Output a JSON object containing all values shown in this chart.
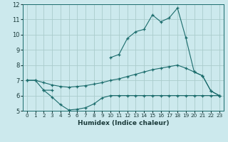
{
  "xlabel": "Humidex (Indice chaleur)",
  "bg_color": "#cce9ed",
  "grid_color": "#aacccc",
  "line_color": "#1a6b6b",
  "xlim": [
    -0.5,
    23.5
  ],
  "ylim": [
    5,
    12
  ],
  "yticks": [
    5,
    6,
    7,
    8,
    9,
    10,
    11,
    12
  ],
  "xticks": [
    0,
    1,
    2,
    3,
    4,
    5,
    6,
    7,
    8,
    9,
    10,
    11,
    12,
    13,
    14,
    15,
    16,
    17,
    18,
    19,
    20,
    21,
    22,
    23
  ],
  "curve1_x": [
    0,
    1,
    2,
    3,
    10,
    11,
    12,
    13,
    14,
    15,
    16,
    17,
    18,
    19,
    20,
    21,
    22,
    23
  ],
  "curve1_y": [
    7.0,
    7.0,
    6.35,
    6.35,
    8.5,
    8.7,
    9.75,
    10.2,
    10.35,
    11.3,
    10.85,
    11.1,
    11.75,
    9.8,
    7.55,
    7.3,
    6.3,
    6.0
  ],
  "curve2_x": [
    0,
    1,
    2,
    3,
    4,
    5,
    6,
    7,
    8,
    9,
    10,
    11,
    12,
    13,
    14,
    15,
    16,
    17,
    18,
    19,
    20,
    21,
    22,
    23
  ],
  "curve2_y": [
    7.0,
    7.0,
    6.85,
    6.7,
    6.6,
    6.55,
    6.6,
    6.65,
    6.75,
    6.85,
    7.0,
    7.1,
    7.25,
    7.4,
    7.55,
    7.7,
    7.8,
    7.9,
    8.0,
    7.8,
    7.55,
    7.3,
    6.3,
    6.0
  ],
  "curve3_x": [
    2,
    3,
    4,
    5,
    6,
    7,
    8,
    9,
    10,
    11,
    12,
    13,
    14,
    15,
    16,
    17,
    18,
    19,
    20,
    21,
    22,
    23
  ],
  "curve3_y": [
    6.35,
    5.9,
    5.4,
    5.05,
    5.1,
    5.2,
    5.45,
    5.85,
    6.0,
    6.0,
    6.0,
    6.0,
    6.0,
    6.0,
    6.0,
    6.0,
    6.0,
    6.0,
    6.0,
    6.0,
    6.0,
    6.0
  ],
  "xlabel_fontsize": 6.5,
  "tick_fontsize_x": 5.2,
  "tick_fontsize_y": 6.0
}
